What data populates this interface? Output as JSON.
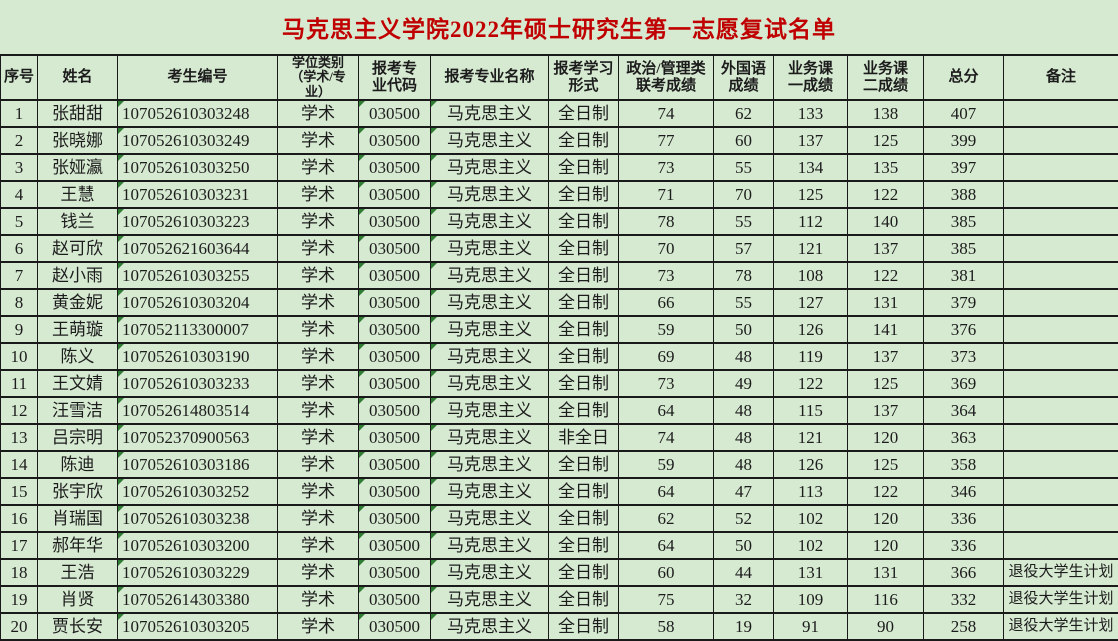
{
  "title": "马克思主义学院2022年硕士研究生第一志愿复试名单",
  "colors": {
    "background": "#d6e9d1",
    "grid": "#1a1a1a",
    "title_text": "#c00000",
    "body_text": "#1c1c1c",
    "flag": "#2e7d32"
  },
  "columns": [
    {
      "id": "index",
      "label": "序号"
    },
    {
      "id": "name",
      "label": "姓名"
    },
    {
      "id": "candidate-no",
      "label": "考生编号",
      "flag": true,
      "align": "left"
    },
    {
      "id": "degree-type",
      "label": "学位类别\n（学术/专\n业）",
      "hsmall": true
    },
    {
      "id": "major-code",
      "label": "报考专\n业代码",
      "flag": true
    },
    {
      "id": "major-name",
      "label": "报考专业名称",
      "flag": true
    },
    {
      "id": "study-form",
      "label": "报考学习\n形式"
    },
    {
      "id": "politics-score",
      "label": "政治/管理类\n联考成绩"
    },
    {
      "id": "foreign-score",
      "label": "外国语\n成绩"
    },
    {
      "id": "course1-score",
      "label": "业务课\n一成绩"
    },
    {
      "id": "course2-score",
      "label": "业务课\n二成绩"
    },
    {
      "id": "total-score",
      "label": "总分"
    },
    {
      "id": "remark",
      "label": "备注",
      "small": true
    }
  ],
  "rows": [
    [
      1,
      "张甜甜",
      "107052610303248",
      "学术",
      "030500",
      "马克思主义",
      "全日制",
      74,
      62,
      133,
      138,
      407,
      ""
    ],
    [
      2,
      "张晓娜",
      "107052610303249",
      "学术",
      "030500",
      "马克思主义",
      "全日制",
      77,
      60,
      137,
      125,
      399,
      ""
    ],
    [
      3,
      "张娅瀛",
      "107052610303250",
      "学术",
      "030500",
      "马克思主义",
      "全日制",
      73,
      55,
      134,
      135,
      397,
      ""
    ],
    [
      4,
      "王慧",
      "107052610303231",
      "学术",
      "030500",
      "马克思主义",
      "全日制",
      71,
      70,
      125,
      122,
      388,
      ""
    ],
    [
      5,
      "钱兰",
      "107052610303223",
      "学术",
      "030500",
      "马克思主义",
      "全日制",
      78,
      55,
      112,
      140,
      385,
      ""
    ],
    [
      6,
      "赵可欣",
      "107052621603644",
      "学术",
      "030500",
      "马克思主义",
      "全日制",
      70,
      57,
      121,
      137,
      385,
      ""
    ],
    [
      7,
      "赵小雨",
      "107052610303255",
      "学术",
      "030500",
      "马克思主义",
      "全日制",
      73,
      78,
      108,
      122,
      381,
      ""
    ],
    [
      8,
      "黄金妮",
      "107052610303204",
      "学术",
      "030500",
      "马克思主义",
      "全日制",
      66,
      55,
      127,
      131,
      379,
      ""
    ],
    [
      9,
      "王萌璇",
      "107052113300007",
      "学术",
      "030500",
      "马克思主义",
      "全日制",
      59,
      50,
      126,
      141,
      376,
      ""
    ],
    [
      10,
      "陈义",
      "107052610303190",
      "学术",
      "030500",
      "马克思主义",
      "全日制",
      69,
      48,
      119,
      137,
      373,
      ""
    ],
    [
      11,
      "王文婧",
      "107052610303233",
      "学术",
      "030500",
      "马克思主义",
      "全日制",
      73,
      49,
      122,
      125,
      369,
      ""
    ],
    [
      12,
      "汪雪洁",
      "107052614803514",
      "学术",
      "030500",
      "马克思主义",
      "全日制",
      64,
      48,
      115,
      137,
      364,
      ""
    ],
    [
      13,
      "吕宗明",
      "107052370900563",
      "学术",
      "030500",
      "马克思主义",
      "非全日",
      74,
      48,
      121,
      120,
      363,
      ""
    ],
    [
      14,
      "陈迪",
      "107052610303186",
      "学术",
      "030500",
      "马克思主义",
      "全日制",
      59,
      48,
      126,
      125,
      358,
      ""
    ],
    [
      15,
      "张宇欣",
      "107052610303252",
      "学术",
      "030500",
      "马克思主义",
      "全日制",
      64,
      47,
      113,
      122,
      346,
      ""
    ],
    [
      16,
      "肖瑞国",
      "107052610303238",
      "学术",
      "030500",
      "马克思主义",
      "全日制",
      62,
      52,
      102,
      120,
      336,
      ""
    ],
    [
      17,
      "郝年华",
      "107052610303200",
      "学术",
      "030500",
      "马克思主义",
      "全日制",
      64,
      50,
      102,
      120,
      336,
      ""
    ],
    [
      18,
      "王浩",
      "107052610303229",
      "学术",
      "030500",
      "马克思主义",
      "全日制",
      60,
      44,
      131,
      131,
      366,
      "退役大学生计划"
    ],
    [
      19,
      "肖贤",
      "107052614303380",
      "学术",
      "030500",
      "马克思主义",
      "全日制",
      75,
      32,
      109,
      116,
      332,
      "退役大学生计划"
    ],
    [
      20,
      "贾长安",
      "107052610303205",
      "学术",
      "030500",
      "马克思主义",
      "全日制",
      58,
      19,
      91,
      90,
      258,
      "退役大学生计划"
    ]
  ]
}
